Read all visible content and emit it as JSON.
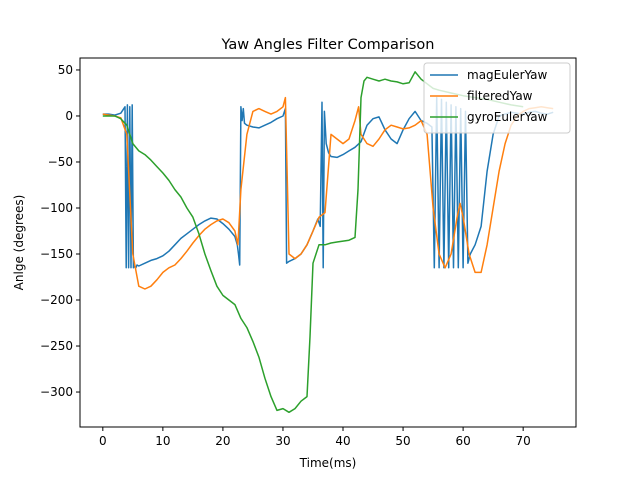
{
  "chart_data": {
    "type": "line",
    "title": "Yaw Angles Filter Comparison",
    "xlabel": "Time(ms)",
    "ylabel": "Anlge (degrees)",
    "xlim": [
      -3.8,
      78.8
    ],
    "ylim": [
      -338,
      63
    ],
    "xticks": [
      0,
      10,
      20,
      30,
      40,
      50,
      60,
      70
    ],
    "yticks": [
      50,
      0,
      -50,
      -100,
      -150,
      -200,
      -250,
      -300
    ],
    "grid": false,
    "legend_position": "top-right",
    "series": [
      {
        "name": "magEulerYaw",
        "color": "#1f77b4",
        "x": [
          0,
          1,
          2,
          3,
          3.7,
          3.9,
          4.1,
          4.3,
          4.5,
          4.7,
          4.9,
          5.1,
          5.3,
          5.5,
          5.7,
          6,
          7,
          8,
          9,
          10,
          11,
          12,
          13,
          14,
          15,
          16,
          17,
          18,
          19,
          20,
          21,
          22,
          22.4,
          22.6,
          22.8,
          23.0,
          23.2,
          23.4,
          23.6,
          24,
          25,
          26,
          27,
          28,
          29,
          30,
          30.4,
          30.6,
          31,
          32,
          33,
          34,
          35,
          35.8,
          36.2,
          36.5,
          36.7,
          36.9,
          37.2,
          37.6,
          38,
          39,
          40,
          41,
          42,
          43,
          44,
          45,
          46,
          47,
          48,
          49,
          50,
          51,
          52,
          53,
          54,
          54.8,
          55.2,
          55.6,
          56,
          56.4,
          56.8,
          57.2,
          57.6,
          58,
          58.4,
          58.8,
          59.2,
          59.6,
          60,
          60.4,
          60.8,
          61.2,
          61.6,
          62,
          63,
          64,
          65,
          66,
          67,
          68,
          69,
          70,
          71,
          72,
          73,
          74,
          75
        ],
        "y": [
          2,
          2,
          1,
          3,
          10,
          -165,
          12,
          -165,
          10,
          -165,
          12,
          -165,
          -163,
          -165,
          -162,
          -163,
          -160,
          -157,
          -155,
          -152,
          -147,
          -140,
          -133,
          -128,
          -123,
          -118,
          -114,
          -111,
          -112,
          -117,
          -123,
          -131,
          -140,
          -150,
          -162,
          10,
          -5,
          8,
          -8,
          -10,
          -12,
          -13,
          -10,
          -7,
          -3,
          0,
          8,
          -160,
          -158,
          -155,
          -150,
          -140,
          -125,
          -112,
          -120,
          15,
          -165,
          5,
          -30,
          -40,
          -44,
          -45,
          -42,
          -38,
          -34,
          -28,
          -10,
          -3,
          -1,
          -15,
          -25,
          -30,
          -15,
          -3,
          5,
          -5,
          -8,
          -12,
          -165,
          20,
          -165,
          18,
          -165,
          15,
          -165,
          12,
          -165,
          10,
          -165,
          8,
          -165,
          5,
          -160,
          -150,
          -145,
          -140,
          -120,
          -60,
          -20,
          0,
          2,
          4,
          3,
          2,
          4,
          5,
          3,
          2,
          4
        ]
      },
      {
        "name": "filteredYaw",
        "color": "#ff7f0e",
        "x": [
          0,
          1,
          2,
          3,
          4,
          5,
          6,
          7,
          8,
          9,
          10,
          11,
          12,
          13,
          14,
          15,
          16,
          17,
          18,
          19,
          20,
          21,
          22,
          22.5,
          23,
          24,
          25,
          26,
          27,
          28,
          29,
          30,
          30.4,
          31,
          32,
          33,
          34,
          35,
          36,
          37,
          38,
          39,
          40,
          41,
          42,
          42.6,
          43,
          44,
          45,
          46,
          47,
          48,
          49,
          50,
          51,
          52,
          53,
          54,
          55,
          56,
          57,
          58,
          59,
          59.5,
          60,
          61,
          62,
          63,
          64,
          65,
          66,
          67,
          68,
          69,
          70,
          71,
          72,
          73,
          74,
          75
        ],
        "y": [
          2,
          1,
          0,
          -2,
          -20,
          -150,
          -185,
          -188,
          -185,
          -178,
          -170,
          -165,
          -162,
          -155,
          -147,
          -138,
          -130,
          -123,
          -118,
          -114,
          -112,
          -116,
          -125,
          -140,
          -80,
          -20,
          5,
          8,
          5,
          2,
          5,
          10,
          20,
          -150,
          -155,
          -150,
          -140,
          -125,
          -110,
          -105,
          -20,
          -25,
          -30,
          -25,
          -5,
          10,
          -20,
          -30,
          -33,
          -25,
          -15,
          -10,
          -12,
          -14,
          -13,
          -10,
          -5,
          -20,
          -100,
          -150,
          -165,
          -150,
          -110,
          -95,
          -110,
          -150,
          -170,
          -170,
          -140,
          -100,
          -60,
          -30,
          -10,
          0,
          5,
          8,
          9,
          10,
          9,
          8
        ]
      },
      {
        "name": "gyroEulerYaw",
        "color": "#2ca02c",
        "x": [
          0,
          2,
          3,
          4,
          5,
          6,
          7,
          8,
          9,
          10,
          11,
          12,
          13,
          14,
          15,
          16,
          17,
          18,
          19,
          20,
          21,
          22,
          23,
          24,
          25,
          26,
          27,
          28,
          29,
          30,
          31,
          32,
          33,
          34,
          34.5,
          35,
          36,
          37,
          38,
          39,
          40,
          41,
          42,
          42.5,
          43,
          43.5,
          44,
          45,
          46,
          47,
          48,
          49,
          50,
          51,
          52,
          53,
          54,
          55,
          56,
          58,
          60,
          62,
          64,
          66,
          68,
          70
        ],
        "y": [
          0,
          0,
          -3,
          -10,
          -30,
          -38,
          -42,
          -48,
          -55,
          -62,
          -70,
          -80,
          -88,
          -100,
          -110,
          -128,
          -150,
          -168,
          -185,
          -195,
          -200,
          -205,
          -220,
          -230,
          -245,
          -262,
          -285,
          -305,
          -320,
          -318,
          -322,
          -318,
          -310,
          -305,
          -240,
          -160,
          -140,
          -140,
          -138,
          -137,
          -136,
          -135,
          -132,
          -80,
          20,
          38,
          42,
          40,
          38,
          40,
          38,
          37,
          35,
          36,
          48,
          40,
          35,
          30,
          28,
          25,
          22,
          20,
          18,
          15,
          12,
          10
        ]
      }
    ]
  }
}
